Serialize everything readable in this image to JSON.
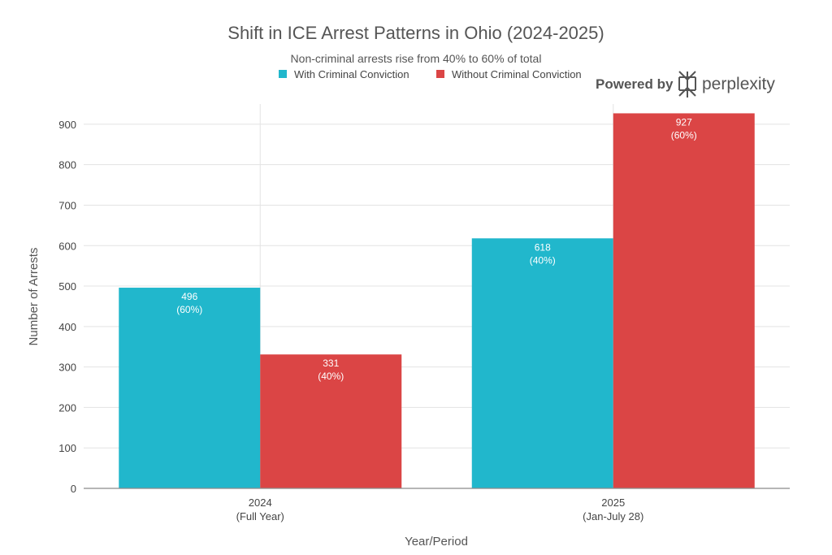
{
  "chart_data": {
    "type": "bar",
    "title": "Shift in ICE Arrest Patterns in Ohio (2024-2025)",
    "subtitle": "Non-criminal arrests rise from 40% to 60% of total",
    "xlabel": "Year/Period",
    "ylabel": "Number of Arrests",
    "ylim": [
      0,
      950
    ],
    "yticks": [
      0,
      100,
      200,
      300,
      400,
      500,
      600,
      700,
      800,
      900
    ],
    "grid": true,
    "legend_position": "top",
    "categories": [
      {
        "main": "2024",
        "sub": "(Full Year)"
      },
      {
        "main": "2025",
        "sub": "(Jan-July 28)"
      }
    ],
    "series": [
      {
        "name": "With Criminal Conviction",
        "color": "#21b7cc",
        "values": [
          496,
          618
        ],
        "percent_labels": [
          "(60%)",
          "(40%)"
        ]
      },
      {
        "name": "Without Criminal Conviction",
        "color": "#db4545",
        "values": [
          331,
          927
        ],
        "percent_labels": [
          "(40%)",
          "(60%)"
        ]
      }
    ]
  },
  "branding": {
    "powered_by": "Powered by",
    "brand_name": "perplexity"
  }
}
